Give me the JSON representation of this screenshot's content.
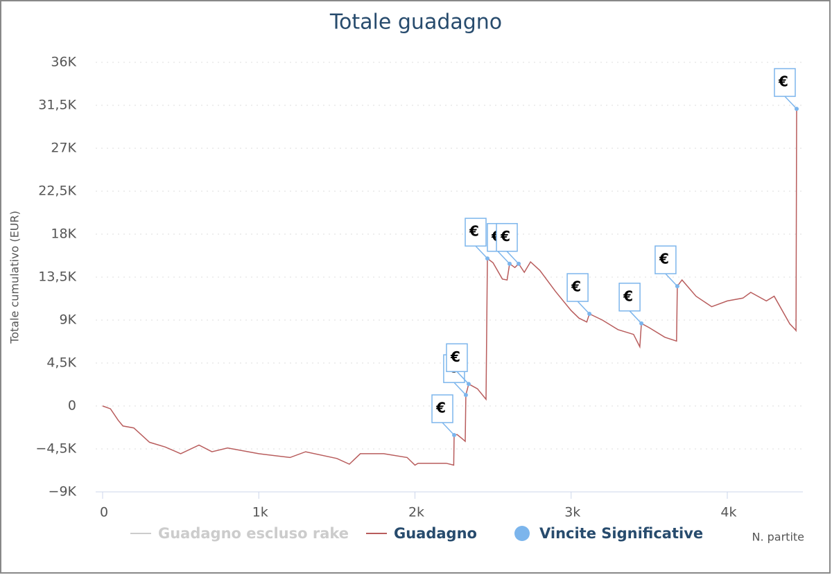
{
  "chart_data": {
    "type": "line",
    "title": "Totale guadagno",
    "x_label": "N. partite",
    "y_label": "Totale cumulativo (EUR)",
    "flag_text": "€",
    "xlim": [
      0,
      4484
    ],
    "ylim": [
      -9000,
      36000
    ],
    "xticks": [
      0,
      {
        "value": 1000,
        "label": "1k"
      },
      {
        "value": 2000,
        "label": "2k"
      },
      {
        "value": 3000,
        "label": "3k"
      },
      {
        "value": 4000,
        "label": "4k"
      }
    ],
    "yticks": [
      {
        "value": -9000,
        "label": "−9K"
      },
      {
        "value": -4500,
        "label": "−4,5K"
      },
      0,
      {
        "value": 4500,
        "label": "4,5K"
      },
      {
        "value": 9000,
        "label": "9K"
      },
      {
        "value": 13500,
        "label": "13,5K"
      },
      {
        "value": 18000,
        "label": "18K"
      },
      {
        "value": 22500,
        "label": "22,5K"
      },
      {
        "value": 27000,
        "label": "27K"
      },
      {
        "value": 31500,
        "label": "31,5K"
      },
      {
        "value": 36000,
        "label": "36K"
      }
    ],
    "grid": true,
    "series": [
      {
        "name": "Guadagno escluso rake",
        "color": "#cccccc",
        "visible": false
      },
      {
        "name": "Guadagno",
        "color": "#b85c5c",
        "x": [
          0,
          50,
          100,
          130,
          200,
          300,
          400,
          500,
          617,
          700,
          800,
          1000,
          1200,
          1300,
          1500,
          1580,
          1650,
          1800,
          1950,
          2000,
          2020,
          2200,
          2248,
          2251,
          2270,
          2300,
          2322,
          2326,
          2344,
          2400,
          2455,
          2464,
          2500,
          2560,
          2590,
          2606,
          2640,
          2664,
          2700,
          2740,
          2800,
          2900,
          3000,
          3050,
          3100,
          3117,
          3200,
          3300,
          3400,
          3440,
          3450,
          3500,
          3600,
          3675,
          3680,
          3710,
          3800,
          3900,
          4000,
          4100,
          4150,
          4250,
          4300,
          4400,
          4435,
          4440,
          4444
        ],
        "values": [
          0,
          -300,
          -1500,
          -2100,
          -2300,
          -3800,
          -4300,
          -5000,
          -4100,
          -4800,
          -4400,
          -5000,
          -5400,
          -4800,
          -5500,
          -6100,
          -5000,
          -5000,
          -5400,
          -6200,
          -6000,
          -6000,
          -6200,
          -3050,
          -3000,
          -3400,
          -3700,
          1150,
          2300,
          1800,
          700,
          15450,
          15000,
          13300,
          13200,
          14900,
          14500,
          14900,
          14000,
          15100,
          14200,
          12000,
          10000,
          9200,
          8800,
          9650,
          9000,
          8000,
          7500,
          6200,
          8650,
          8200,
          7200,
          6800,
          12550,
          13200,
          11500,
          10400,
          11000,
          11300,
          11900,
          11000,
          11500,
          8600,
          8000,
          7900,
          31130
        ]
      },
      {
        "name": "Vincite Significative",
        "color": "#7cb5ec",
        "type": "scatter",
        "x": [
          2251,
          2326,
          2344,
          2464,
          2606,
          2664,
          3117,
          3450,
          3680,
          4444
        ],
        "values": [
          -3050,
          1150,
          2300,
          15450,
          14900,
          14900,
          9650,
          8650,
          12550,
          31130
        ]
      }
    ]
  }
}
